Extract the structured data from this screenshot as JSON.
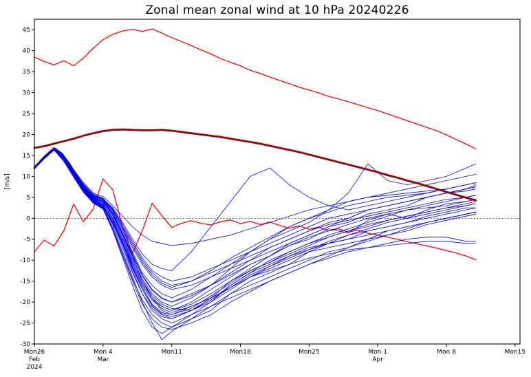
{
  "chart_data": {
    "type": "line",
    "title": "Zonal mean zonal wind at 10 hPa 20240226",
    "ylabel": "[m/s]",
    "xlabel": "",
    "ylim": [
      -30,
      47.5
    ],
    "xlim": [
      0,
      49.5
    ],
    "grid": false,
    "zero_line": true,
    "legend": "none",
    "yticks": [
      45,
      40,
      35,
      30,
      25,
      20,
      15,
      10,
      5,
      0,
      -5,
      -10,
      -15,
      -20,
      -25,
      -30
    ],
    "xticks": [
      {
        "x": 0,
        "label": "Mon26",
        "sub1": "Feb",
        "sub2": "2024"
      },
      {
        "x": 7,
        "label": "Mon 4",
        "sub1": "Mar"
      },
      {
        "x": 14,
        "label": "Mon11"
      },
      {
        "x": 21,
        "label": "Mon18"
      },
      {
        "x": 28,
        "label": "Mon25"
      },
      {
        "x": 35,
        "label": "Mon 1",
        "sub1": "Apr"
      },
      {
        "x": 42,
        "label": "Mon 8"
      },
      {
        "x": 49,
        "label": "Mon15"
      }
    ],
    "x_days": [
      0,
      1,
      2,
      3,
      4,
      5,
      6,
      7,
      8,
      9,
      10,
      11,
      12,
      13,
      14,
      15,
      16,
      17,
      18,
      19,
      20,
      21,
      22,
      23,
      24,
      25,
      26,
      27,
      28,
      29,
      30,
      31,
      32,
      33,
      34,
      35,
      36,
      37,
      38,
      39,
      40,
      41,
      42,
      43,
      44,
      45
    ],
    "series": [
      {
        "name": "climatology-max",
        "layer": "under",
        "color": "#ff0000",
        "width": 1.3,
        "y": [
          38.5,
          37.4,
          36.6,
          37.6,
          36.4,
          38.2,
          40.6,
          42.6,
          43.9,
          44.7,
          45.1,
          44.6,
          45.2,
          44.2,
          43.1,
          42.2,
          41.2,
          40.2,
          39.2,
          38.1,
          37.2,
          36.4,
          35.3,
          34.6,
          33.7,
          32.9,
          32.1,
          31.3,
          30.6,
          29.9,
          29.1,
          28.5,
          27.8,
          27.1,
          26.4,
          25.7,
          24.9,
          24.1,
          23.3,
          22.5,
          21.7,
          20.9,
          19.9,
          18.8,
          17.7,
          16.6
        ]
      },
      {
        "name": "climatology-min",
        "layer": "under",
        "color": "#ff0000",
        "width": 1.3,
        "y": [
          -8.0,
          -5.2,
          -6.6,
          -3.0,
          3.4,
          -0.8,
          2.2,
          9.4,
          6.8,
          -2.2,
          -8.4,
          -3.0,
          3.6,
          0.6,
          -2.2,
          -1.2,
          -0.6,
          -1.2,
          -1.6,
          -0.8,
          -0.4,
          -1.3,
          -0.7,
          -1.5,
          -0.9,
          -1.7,
          -2.4,
          -1.8,
          -2.6,
          -2.1,
          -3.0,
          -2.5,
          -3.3,
          -2.8,
          -3.6,
          -4.0,
          -4.5,
          -5.0,
          -5.6,
          -6.1,
          -6.6,
          -7.1,
          -7.7,
          -8.3,
          -9.0,
          -9.9
        ]
      },
      {
        "name": "climatology-mean",
        "layer": "over",
        "color": "#990000",
        "width": 2.8,
        "y": [
          16.8,
          17.2,
          17.8,
          18.4,
          19.0,
          19.7,
          20.3,
          20.8,
          21.1,
          21.2,
          21.1,
          21.0,
          21.0,
          21.1,
          20.9,
          20.6,
          20.3,
          20.0,
          19.7,
          19.4,
          19.0,
          18.6,
          18.2,
          17.8,
          17.3,
          16.8,
          16.3,
          15.8,
          15.2,
          14.6,
          14.0,
          13.4,
          12.8,
          12.2,
          11.6,
          11.0,
          10.3,
          9.7,
          9.0,
          8.4,
          7.7,
          7.0,
          6.3,
          5.6,
          4.9,
          4.3
        ]
      },
      {
        "name": "analysis",
        "layer": "over",
        "color": "#0000cd",
        "width": 2.8,
        "x": [
          0,
          0.7,
          1.4,
          2.1,
          2.8,
          3.5,
          4.2,
          5.0,
          5.7,
          6.4
        ],
        "y": [
          12.0,
          13.8,
          15.3,
          16.6,
          15.4,
          13.2,
          10.6,
          7.2,
          5.4,
          4.4
        ]
      }
    ],
    "ensemble": {
      "name": "ensemble-members",
      "color": "#0000ff",
      "width": 0.8,
      "x": [
        0,
        1,
        2,
        3,
        4,
        5,
        6,
        7,
        8,
        9,
        10,
        11,
        12,
        13,
        14,
        16,
        18,
        20,
        22,
        24,
        26,
        28,
        30,
        32,
        34,
        36,
        38,
        40,
        42,
        44,
        45
      ],
      "members": [
        [
          12.1,
          14.8,
          16.9,
          14.5,
          10.2,
          6.5,
          3.8,
          2.5,
          -2.0,
          -8.0,
          -14.0,
          -20.0,
          -25.0,
          -29.0,
          -27.0,
          -24,
          -21,
          -18,
          -16,
          -14,
          -12,
          -10,
          -8,
          -7,
          -5,
          -4,
          -2.5,
          -1,
          0,
          1,
          1.5
        ],
        [
          11.8,
          14.2,
          16.3,
          13.8,
          10.8,
          7.5,
          5.0,
          4.0,
          1.0,
          -4.0,
          -9.0,
          -15.0,
          -19.0,
          -22.0,
          -23.0,
          -21,
          -19,
          -16.5,
          -14,
          -11.5,
          -9,
          -7,
          -6,
          -4,
          -3,
          -2,
          -1,
          0.5,
          1.5,
          2.5,
          2.5
        ],
        [
          12.3,
          14.6,
          16.7,
          14.0,
          10.0,
          6.8,
          4.2,
          3.0,
          -1.0,
          -6.0,
          -12.0,
          -17.0,
          -21.0,
          -23.0,
          -24.0,
          -22,
          -19.5,
          -16,
          -13,
          -10,
          -8,
          -6,
          -4.5,
          -3,
          -2,
          -0.5,
          0.5,
          1.5,
          2.5,
          3,
          3.5
        ],
        [
          12.0,
          14.4,
          16.5,
          14.2,
          10.6,
          7.2,
          4.8,
          3.6,
          0.0,
          -5.0,
          -11.0,
          -16.0,
          -19.5,
          -21.0,
          -22.0,
          -20,
          -17,
          -14,
          -11,
          -9,
          -6.5,
          -5,
          -2.5,
          -3.5,
          -0.5,
          1,
          0,
          2,
          3.5,
          4,
          4.5
        ],
        [
          12.2,
          14.7,
          16.8,
          14.6,
          11.2,
          8.0,
          5.5,
          4.5,
          2.0,
          -2.0,
          -6.0,
          -10.0,
          -13.0,
          -15.0,
          -16.0,
          -15,
          -13,
          -11,
          -9,
          -7,
          -5,
          -3,
          -1.5,
          -0.5,
          0.5,
          1.5,
          2.5,
          3.5,
          4.5,
          5,
          5.5
        ],
        [
          11.9,
          14.3,
          16.4,
          13.9,
          10.4,
          7.0,
          4.5,
          3.2,
          -0.5,
          -5.5,
          -11.5,
          -16.5,
          -20.5,
          -22.5,
          -23.0,
          -21.5,
          -18.5,
          -15.5,
          -12.5,
          -10.5,
          -8.5,
          -6.5,
          -4.5,
          -3,
          -1.5,
          -0.5,
          0.5,
          1.5,
          2.5,
          3.5,
          4
        ],
        [
          12.1,
          14.5,
          16.6,
          14.1,
          10.3,
          6.9,
          4.3,
          2.8,
          -1.5,
          -7.0,
          -13.0,
          -18.0,
          -22.0,
          -24.0,
          -25.0,
          -23,
          -21,
          -19,
          -17,
          -15,
          -13,
          -11,
          -9.5,
          -8,
          -7,
          -6,
          -5,
          -4.5,
          -4.5,
          -5.5,
          -5.5
        ],
        [
          12.0,
          14.6,
          16.7,
          14.3,
          10.7,
          7.4,
          5.1,
          4.2,
          1.5,
          -3.0,
          -8.0,
          -13.0,
          -16.0,
          -18.0,
          -19.0,
          -17,
          -14,
          -11,
          -8,
          -5,
          -3,
          -1,
          2,
          6,
          13,
          9,
          8,
          9,
          10,
          12,
          13
        ],
        [
          12.2,
          14.4,
          16.5,
          14.0,
          10.1,
          6.6,
          4.0,
          2.6,
          -1.0,
          -6.5,
          -12.5,
          -18.0,
          -21.5,
          -23.5,
          -24.0,
          -22,
          -19,
          -15,
          -12,
          -9,
          -6,
          -4,
          -2,
          0,
          2,
          3,
          4,
          5,
          6,
          7,
          7.5
        ],
        [
          11.8,
          14.5,
          16.6,
          14.4,
          11.0,
          7.8,
          5.3,
          4.4,
          1.8,
          -2.5,
          -7.0,
          -11.0,
          -14.0,
          -16.0,
          -17.0,
          -16,
          -14,
          -12,
          -10,
          -8,
          -6,
          -4,
          -2,
          -1,
          1,
          2,
          3,
          5,
          6,
          7,
          8
        ],
        [
          12.0,
          14.3,
          16.4,
          13.7,
          10.0,
          6.4,
          3.9,
          2.4,
          -2.5,
          -8.5,
          -14.5,
          -19.5,
          -23.0,
          -25.0,
          -26.0,
          -24,
          -22,
          -18,
          -15,
          -13,
          -11,
          -8,
          -6,
          -5,
          -3,
          -2,
          -1,
          0,
          1,
          2,
          2.5
        ],
        [
          12.3,
          14.8,
          16.8,
          14.7,
          11.4,
          8.2,
          5.8,
          4.8,
          2.2,
          -1.5,
          -5.5,
          -9.5,
          -12.5,
          -14.0,
          -15.0,
          -14,
          -12,
          -10,
          -8,
          -6,
          -4,
          -2,
          0,
          1,
          2,
          3,
          4,
          5,
          6,
          7,
          7.5
        ],
        [
          12.1,
          14.5,
          16.5,
          14.1,
          10.5,
          7.1,
          4.6,
          3.4,
          0.5,
          -4.5,
          -10.0,
          -15.0,
          -18.5,
          -20.5,
          -21.5,
          -22,
          -20,
          -17,
          -14,
          -12,
          -10,
          -8,
          -7,
          -6,
          -5,
          -3,
          -2,
          -1,
          0,
          1,
          1.5
        ],
        [
          11.9,
          14.4,
          16.6,
          14.2,
          10.8,
          7.6,
          5.2,
          4.1,
          1.2,
          -3.5,
          -8.5,
          -13.5,
          -17.0,
          -19.0,
          -20.0,
          -18,
          -16,
          -13,
          -10,
          -7,
          -5,
          -3,
          -1,
          0,
          2,
          3,
          4,
          5,
          6,
          6.5,
          7
        ],
        [
          12.2,
          14.7,
          16.7,
          14.4,
          10.9,
          7.7,
          5.4,
          4.6,
          2.5,
          -1.0,
          -5.0,
          -8.5,
          -11.0,
          -12.0,
          -12.5,
          -8,
          -2,
          4,
          10,
          12,
          8,
          5,
          3,
          2,
          3,
          4,
          5,
          6,
          7,
          8,
          8.5
        ],
        [
          12.0,
          14.6,
          16.6,
          14.3,
          10.4,
          7.0,
          4.4,
          3.1,
          -0.2,
          -5.0,
          -10.5,
          -15.5,
          -19.0,
          -21.0,
          -22.0,
          -20.5,
          -18,
          -15,
          -12.5,
          -10.5,
          -8,
          -6,
          -4,
          -2.5,
          -1,
          0.5,
          2,
          3,
          4,
          5,
          5.5
        ],
        [
          12.1,
          14.4,
          16.5,
          14.0,
          10.2,
          6.7,
          4.1,
          2.7,
          -1.2,
          -6.0,
          -11.0,
          -16.0,
          -19.5,
          -21.5,
          -22.5,
          -21,
          -19,
          -16.5,
          -14,
          -12.5,
          -11,
          -9.5,
          -8.5,
          -7.5,
          -7,
          -6.5,
          -6,
          -5.5,
          -5.5,
          -6,
          -6
        ],
        [
          11.9,
          14.5,
          16.7,
          14.5,
          11.1,
          7.9,
          5.6,
          4.7,
          2.0,
          -2.0,
          -6.5,
          -10.5,
          -13.5,
          -15.5,
          -16.5,
          -15,
          -12.5,
          -9.5,
          -7,
          -4.5,
          -2,
          0,
          1.5,
          3,
          4,
          5,
          5.5,
          6,
          7,
          8,
          8.5
        ],
        [
          12.2,
          14.6,
          16.8,
          14.2,
          10.6,
          7.3,
          4.9,
          3.8,
          0.8,
          -4.0,
          -9.5,
          -14.5,
          -18.0,
          -20.0,
          -21.0,
          -19,
          -16,
          -12,
          -8,
          -5,
          -2,
          0,
          2,
          4,
          5,
          6,
          7,
          8,
          9,
          10,
          10.5
        ],
        [
          12.0,
          14.3,
          16.4,
          13.8,
          9.9,
          6.3,
          3.7,
          2.3,
          -2.8,
          -9.0,
          -15.0,
          -20.5,
          -24.0,
          -26.0,
          -26.5,
          -25,
          -23,
          -20,
          -17.5,
          -15,
          -13,
          -11,
          -9,
          -7,
          -5.5,
          -4,
          -3,
          -1.5,
          -0.5,
          0.5,
          1
        ],
        [
          12.1,
          14.7,
          16.6,
          14.4,
          10.8,
          7.5,
          5.0,
          4.0,
          1.0,
          -3.8,
          -8.8,
          -13.8,
          -17.2,
          -19.2,
          -20.0,
          -18.5,
          -16,
          -13.5,
          -11,
          -9,
          -6.5,
          -4.5,
          -3,
          -1.5,
          0,
          1,
          2,
          2.5,
          3,
          4,
          4.5
        ],
        [
          12.3,
          14.5,
          16.5,
          14.1,
          10.3,
          6.8,
          4.2,
          2.9,
          -0.8,
          -5.8,
          -11.8,
          -17.0,
          -20.8,
          -22.8,
          -23.5,
          -22,
          -19.5,
          -16.5,
          -13.5,
          -11.5,
          -9.5,
          -7.5,
          -5.5,
          -4,
          -2.5,
          -1,
          0,
          1,
          2,
          3,
          3.5
        ],
        [
          12.2,
          14.8,
          16.9,
          14.8,
          11.6,
          8.5,
          6.0,
          5.2,
          3.0,
          0.5,
          -2.0,
          -4.0,
          -5.5,
          -6.0,
          -6.5,
          -6,
          -5,
          -4,
          -2.5,
          -1,
          0.5,
          2,
          3,
          4,
          5,
          5.5,
          6,
          6.5,
          7,
          8,
          8.5
        ],
        [
          11.8,
          14.2,
          16.3,
          13.6,
          9.8,
          6.2,
          3.6,
          2.2,
          -3.0,
          -9.5,
          -16.0,
          -22.0,
          -26.0,
          -27.5,
          -26.0,
          -23,
          -20,
          -16,
          -13,
          -11,
          -9,
          -7.5,
          -6,
          -5,
          -4,
          -3,
          -2,
          -1,
          0,
          1,
          1.5
        ]
      ]
    }
  }
}
